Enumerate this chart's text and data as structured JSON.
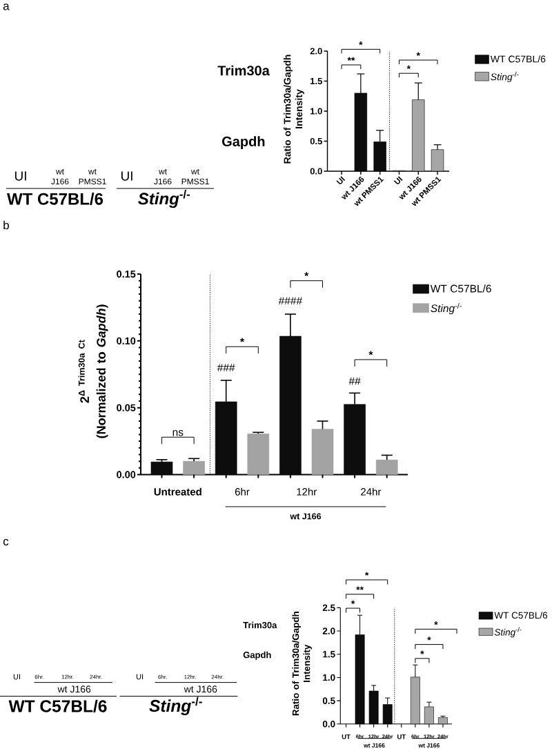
{
  "chart_data": [
    {
      "type": "other",
      "title": "a",
      "annotations": [
        "Trim30a",
        "Gapdh",
        "UI",
        "wt J166",
        "wt PMSS1",
        "UI",
        "wt J166",
        "wt PMSS1",
        "WT C57BL/6",
        "*Sting*$^{-/-}$"
      ]
    },
    {
      "type": "bar",
      "categories": [
        "UI",
        "wt J166",
        "wt PMSS1",
        "UI",
        "wt J166",
        "wt PMSS1"
      ],
      "ylabel": "Ratio of Trim30a/Gapdh Intensity",
      "ylim": [
        0,
        2
      ],
      "yticks": [
        {
          "value": 0,
          "label": "0.0"
        },
        0.5,
        {
          "value": 1,
          "label": "1.0"
        },
        1.5,
        {
          "value": 2,
          "label": "2.0"
        }
      ],
      "series": [
        {
          "name": "WT C57BL/6",
          "color": "#0d0d0d",
          "values": [
            null,
            1.3,
            0.49,
            null,
            null,
            null
          ],
          "errors": [
            null,
            [
              1.3,
              1.62
            ],
            [
              0.49,
              0.68
            ],
            null,
            null,
            null
          ]
        },
        {
          "name": "*Sting*$^{-/-}$",
          "color": "#a6a6a6",
          "values": [
            null,
            null,
            null,
            0.01,
            1.19,
            0.36
          ],
          "errors": [
            null,
            null,
            null,
            null,
            [
              1.19,
              1.47
            ],
            [
              0.36,
              0.44
            ]
          ]
        }
      ],
      "annotations": [
        "**",
        "*",
        "*",
        "*"
      ],
      "legend": "top right"
    },
    {
      "type": "other",
      "title": "b"
    },
    {
      "type": "bar",
      "categories": [
        "Untreated",
        "6hr",
        "12hr",
        "24hr"
      ],
      "ylabel": "2$^{Δ Trim30a Ct}$ (Normalized to *Gapdh*)",
      "ylim": [
        0,
        0.15
      ],
      "yticks": [
        {
          "value": 0,
          "label": "0.00"
        },
        0.05,
        {
          "value": 0.1,
          "label": "0.10"
        },
        0.15
      ],
      "series": [
        {
          "name": "WT C57BL/6",
          "color": "#0d0d0d",
          "values": [
            0.0095,
            0.0545,
            0.1035,
            0.0525
          ],
          "errors": [
            [
              0.0095,
              0.0112
            ],
            [
              0.0545,
              0.0705
            ],
            [
              0.1035,
              0.12
            ],
            [
              0.0525,
              0.061
            ]
          ]
        },
        {
          "name": "*Sting*$^{-/-}$",
          "color": "#a3a3a3",
          "values": [
            0.01,
            0.0305,
            0.034,
            0.011
          ],
          "errors": [
            [
              0.01,
              0.012
            ],
            [
              0.0305,
              0.0316
            ],
            [
              0.034,
              0.04
            ],
            [
              0.011,
              0.0145
            ]
          ]
        }
      ],
      "annotations": [
        "ns",
        "*",
        "*",
        "*",
        "###",
        "####",
        "##",
        "wt J166"
      ],
      "legend": "top right"
    },
    {
      "type": "other",
      "title": "c",
      "annotations": [
        "Trim30a",
        "Gapdh",
        "UI",
        "6hr.",
        "12hr.",
        "24hr.",
        "wt J166",
        "UI",
        "6hr.",
        "12hr.",
        "24hr.",
        "wt J166",
        "WT C57BL/6",
        "*Sting*$^{-/-}$"
      ]
    },
    {
      "type": "bar",
      "categories": [
        "UT",
        "6hr",
        "12hr",
        "24hr",
        "UT",
        "6hr",
        "12hr",
        "24hr"
      ],
      "ylabel": "Ratio of Trim30a/Gapdh Intensity",
      "ylim": [
        0,
        2.5
      ],
      "yticks": [
        {
          "value": 0,
          "label": "0.0"
        },
        0.5,
        {
          "value": 1,
          "label": "1.0"
        },
        1.5,
        {
          "value": 2,
          "label": "2.0"
        },
        2.5
      ],
      "series": [
        {
          "name": "WT C57BL/6",
          "color": "#0d0d0d",
          "values": [
            null,
            1.92,
            0.71,
            0.42,
            null,
            null,
            null,
            null
          ],
          "errors": [
            null,
            [
              1.92,
              2.34
            ],
            [
              0.71,
              0.83
            ],
            [
              0.42,
              0.56
            ],
            null,
            null,
            null,
            null
          ]
        },
        {
          "name": "*Sting*$^{-/-}$",
          "color": "#a6a6a6",
          "values": [
            null,
            null,
            null,
            null,
            null,
            1.01,
            0.37,
            0.14
          ],
          "errors": [
            null,
            null,
            null,
            null,
            null,
            [
              1.01,
              1.27
            ],
            [
              0.37,
              0.47
            ],
            [
              0.14,
              0.17
            ]
          ]
        }
      ],
      "annotations": [
        "*",
        "**",
        "*",
        "*",
        "*",
        "*",
        "wt J166",
        "wt J166"
      ],
      "legend": "top right"
    }
  ]
}
